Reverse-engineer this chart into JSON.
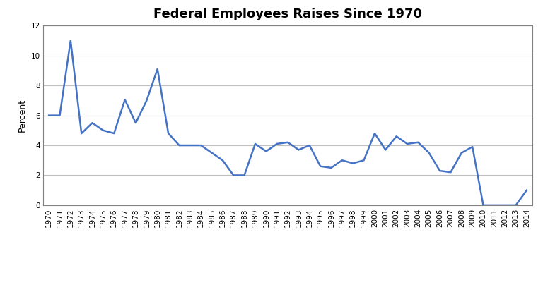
{
  "title": "Federal Employees Raises Since 1970",
  "ylabel": "Percent",
  "years": [
    1970,
    1971,
    1972,
    1973,
    1974,
    1975,
    1976,
    1977,
    1978,
    1979,
    1980,
    1981,
    1982,
    1983,
    1984,
    1985,
    1986,
    1987,
    1988,
    1989,
    1990,
    1991,
    1992,
    1993,
    1994,
    1995,
    1996,
    1997,
    1998,
    1999,
    2000,
    2001,
    2002,
    2003,
    2004,
    2005,
    2006,
    2007,
    2008,
    2009,
    2010,
    2011,
    2012,
    2013,
    2014
  ],
  "values": [
    6.0,
    6.0,
    11.0,
    4.8,
    5.5,
    5.0,
    4.8,
    7.05,
    5.5,
    7.0,
    9.1,
    4.8,
    4.0,
    4.0,
    4.0,
    3.5,
    3.0,
    2.0,
    2.0,
    4.1,
    3.6,
    4.1,
    4.2,
    3.7,
    4.0,
    2.6,
    2.5,
    3.0,
    2.8,
    3.0,
    4.8,
    3.7,
    4.6,
    4.1,
    4.2,
    3.5,
    2.3,
    2.2,
    3.5,
    3.9,
    0.0,
    0.0,
    0.0,
    0.0,
    1.0
  ],
  "line_color": "#4472c4",
  "ylim": [
    0,
    12
  ],
  "yticks": [
    0,
    2,
    4,
    6,
    8,
    10,
    12
  ],
  "bg_color": "#ffffff",
  "plot_bg_color": "#ffffff",
  "grid_color": "#c0c0c0",
  "spine_color": "#808080",
  "title_fontsize": 13,
  "label_fontsize": 9,
  "tick_fontsize": 7.5
}
